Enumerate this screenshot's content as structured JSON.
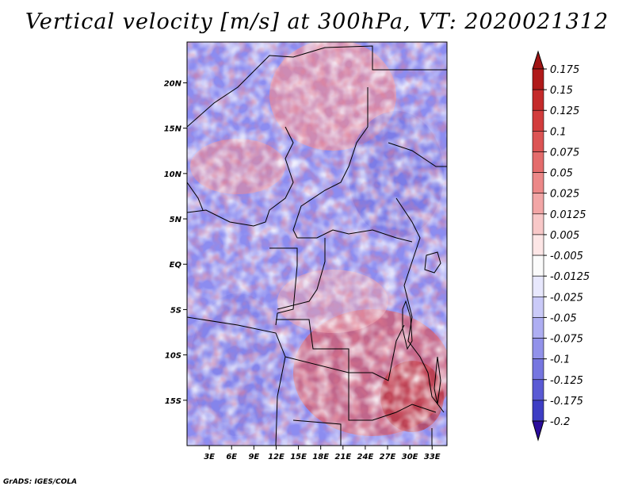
{
  "title": "Vertical velocity [m/s] at 300hPa, VT: 2020021312",
  "credit": "GrADS: IGES/COLA",
  "map": {
    "lat_labels": [
      "20N",
      "15N",
      "10N",
      "5N",
      "EQ",
      "5S",
      "10S",
      "15S"
    ],
    "lat_values": [
      20,
      15,
      10,
      5,
      0,
      -5,
      -10,
      -15
    ],
    "lon_labels": [
      "3E",
      "6E",
      "9E",
      "12E",
      "15E",
      "18E",
      "21E",
      "24E",
      "27E",
      "30E",
      "33E"
    ],
    "lon_values": [
      3,
      6,
      9,
      12,
      15,
      18,
      21,
      24,
      27,
      30,
      33
    ],
    "lon_range": [
      0,
      35
    ],
    "lat_range": [
      -20,
      24.5
    ]
  },
  "colorbar": {
    "labels": [
      "0.175",
      "0.15",
      "0.125",
      "0.1",
      "0.075",
      "0.05",
      "0.025",
      "0.0125",
      "0.005",
      "-0.005",
      "-0.0125",
      "-0.025",
      "-0.05",
      "-0.075",
      "-0.1",
      "-0.125",
      "-0.175",
      "-0.2"
    ],
    "colors": [
      "#b01a1a",
      "#c42a2a",
      "#d23c3c",
      "#dc5454",
      "#e46c6c",
      "#ec8888",
      "#f2a6a6",
      "#f8c8c8",
      "#fde6e6",
      "#fbfbfb",
      "#e8e8fd",
      "#cacaf8",
      "#aeaef2",
      "#9292ea",
      "#7676e0",
      "#5a5ad4",
      "#3e3ec4",
      "#2a1aa8"
    ],
    "top_arrow_color": "#a01414",
    "bottom_arrow_color": "#2a0c9c"
  }
}
